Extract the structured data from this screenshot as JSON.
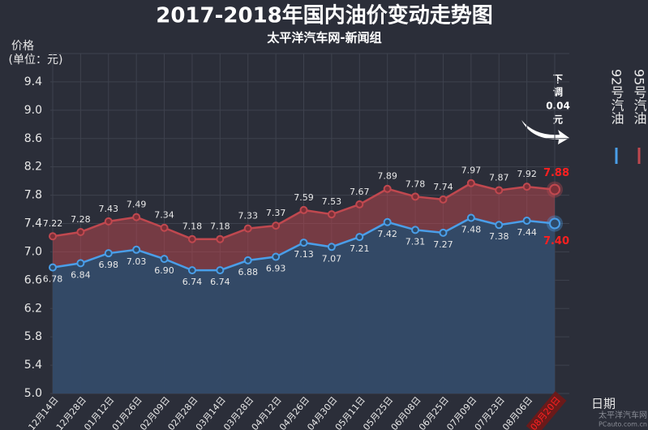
{
  "chart_data": {
    "type": "line",
    "title": "2017-2018年国内油价变动走势图",
    "subtitle": "太平洋汽车网-新闻组",
    "y_label": [
      "价格",
      "(单位：元)"
    ],
    "x_label": "日期",
    "annotation": [
      "下",
      "调",
      "0.04",
      "元"
    ],
    "watermark": [
      "太平洋汽车网",
      "PCauto.com.cn"
    ],
    "categories": [
      "12月14日",
      "12月28日",
      "01月12日",
      "01月26日",
      "02月09日",
      "02月28日",
      "03月14日",
      "03月28日",
      "04月12日",
      "04月26日",
      "04月30日",
      "05月11日",
      "05月25日",
      "06月08日",
      "06月25日",
      "07月09日",
      "07月23日",
      "08月06日",
      "08月20日"
    ],
    "series": [
      {
        "name": "92号汽油",
        "color": "#4a9ee8",
        "values": [
          6.78,
          6.84,
          6.98,
          7.03,
          6.9,
          6.74,
          6.74,
          6.88,
          6.93,
          7.13,
          7.07,
          7.21,
          7.42,
          7.31,
          7.27,
          7.48,
          7.38,
          7.44,
          7.4
        ],
        "value_labels": [
          "6.78",
          "6.84",
          "6.98",
          "7.03",
          "6.90",
          "6.74",
          "6.74",
          "6.88",
          "6.93",
          "7.13",
          "7.07",
          "7.21",
          "7.42",
          "7.31",
          "7.27",
          "7.48",
          "7.38",
          "7.44",
          "7.40"
        ]
      },
      {
        "name": "95号汽油",
        "color": "#c0484f",
        "values": [
          7.22,
          7.28,
          7.43,
          7.49,
          7.34,
          7.18,
          7.18,
          7.33,
          7.37,
          7.59,
          7.53,
          7.67,
          7.89,
          7.78,
          7.74,
          7.97,
          7.87,
          7.92,
          7.88
        ],
        "value_labels": [
          "7.22",
          "7.28",
          "7.43",
          "7.49",
          "7.34",
          "7.18",
          "7.18",
          "7.33",
          "7.37",
          "7.59",
          "7.53",
          "7.67",
          "7.89",
          "7.78",
          "7.74",
          "7.97",
          "7.87",
          "7.92",
          "7.88"
        ]
      }
    ],
    "ylim": [
      5,
      9.8
    ],
    "yticks": [
      {
        "value": 5,
        "label": "5.0"
      },
      5.4,
      5.8,
      6.2,
      6.6,
      {
        "value": 7,
        "label": "7.0"
      },
      7.4,
      7.8,
      8.2,
      8.6,
      {
        "value": 9,
        "label": "9.0"
      },
      9.4
    ],
    "grid": true,
    "area": true,
    "highlight_color": "#ff2020"
  }
}
